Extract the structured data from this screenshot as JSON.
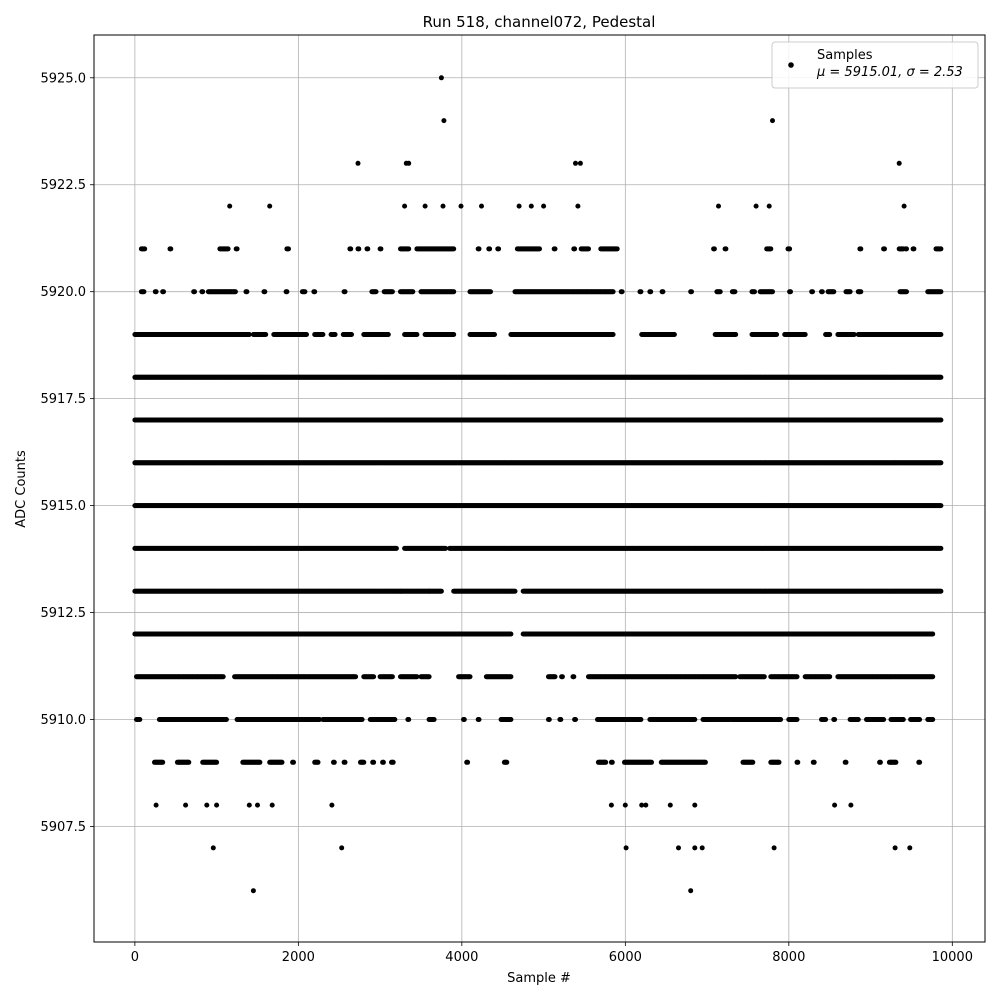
{
  "chart_data": {
    "type": "scatter",
    "title": "Run 518, channel072, Pedestal",
    "xlabel": "Sample #",
    "ylabel": "ADC Counts",
    "xlim": [
      -500,
      10400
    ],
    "ylim": [
      5904.8,
      5926.0
    ],
    "x_ticks": [
      0,
      2000,
      4000,
      6000,
      8000,
      10000
    ],
    "x_tick_labels": [
      "0",
      "2000",
      "4000",
      "6000",
      "8000",
      "10000"
    ],
    "y_ticks": [
      5907.5,
      5910.0,
      5912.5,
      5915.0,
      5917.5,
      5920.0,
      5922.5,
      5925.0
    ],
    "y_tick_labels": [
      "5907.5",
      "5910.0",
      "5912.5",
      "5915.0",
      "5917.5",
      "5920.0",
      "5922.5",
      "5925.0"
    ],
    "grid": true,
    "legend": {
      "placement": "top-right",
      "entries": [
        {
          "name": "Samples",
          "stats": "μ = 5915.01, σ = 2.53"
        }
      ]
    },
    "series": [
      {
        "name": "Samples",
        "color": "#000000",
        "num_samples": 9860,
        "mean": 5915.01,
        "sigma": 2.53,
        "points": [
          [
            3750,
            5925
          ],
          [
            3780,
            5924
          ],
          [
            7800,
            5924
          ],
          [
            2730,
            5923
          ],
          [
            3320,
            5923
          ],
          [
            3350,
            5923
          ],
          [
            5390,
            5923
          ],
          [
            5450,
            5923
          ],
          [
            9350,
            5923
          ],
          [
            1160,
            5922
          ],
          [
            1650,
            5922
          ],
          [
            3300,
            5922
          ],
          [
            3550,
            5922
          ],
          [
            3770,
            5922
          ],
          [
            3990,
            5922
          ],
          [
            4240,
            5922
          ],
          [
            4700,
            5922
          ],
          [
            4850,
            5922
          ],
          [
            5000,
            5922
          ],
          [
            5420,
            5922
          ],
          [
            7140,
            5922
          ],
          [
            7600,
            5922
          ],
          [
            7760,
            5922
          ],
          [
            9410,
            5922
          ],
          [
            960,
            5907
          ],
          [
            2530,
            5907
          ],
          [
            6010,
            5907
          ],
          [
            6650,
            5907
          ],
          [
            6850,
            5907
          ],
          [
            6940,
            5907
          ],
          [
            7820,
            5907
          ],
          [
            9300,
            5907
          ],
          [
            9480,
            5907
          ],
          [
            1450,
            5906
          ],
          [
            6800,
            5906
          ],
          [
            260,
            5908
          ],
          [
            620,
            5908
          ],
          [
            880,
            5908
          ],
          [
            1000,
            5908
          ],
          [
            1400,
            5908
          ],
          [
            1500,
            5908
          ],
          [
            1680,
            5908
          ],
          [
            2410,
            5908
          ],
          [
            5830,
            5908
          ],
          [
            6000,
            5908
          ],
          [
            6200,
            5908
          ],
          [
            6250,
            5908
          ],
          [
            6550,
            5908
          ],
          [
            6850,
            5908
          ],
          [
            8560,
            5908
          ],
          [
            8760,
            5908
          ]
        ],
        "levels": [
          {
            "y": 5909,
            "ranges": [
              [
                240,
                340
              ],
              [
                520,
                660
              ],
              [
                830,
                1000
              ],
              [
                1320,
                1530
              ],
              [
                1650,
                1800
              ],
              [
                1930,
                1940
              ],
              [
                2200,
                2240
              ],
              [
                2430,
                2440
              ],
              [
                2560,
                2570
              ],
              [
                2760,
                2800
              ],
              [
                2910,
                2920
              ],
              [
                3030,
                3040
              ],
              [
                3140,
                3160
              ],
              [
                4060,
                4070
              ],
              [
                4520,
                4550
              ],
              [
                5670,
                5760
              ],
              [
                5830,
                5840
              ],
              [
                5990,
                6320
              ],
              [
                6440,
                6980
              ],
              [
                7440,
                7560
              ],
              [
                7780,
                7880
              ],
              [
                8100,
                8110
              ],
              [
                8300,
                8310
              ],
              [
                8690,
                8700
              ],
              [
                9110,
                9120
              ],
              [
                9230,
                9310
              ],
              [
                9590,
                9600
              ]
            ]
          },
          {
            "y": 5910,
            "ranges": [
              [
                20,
                60
              ],
              [
                300,
                1120
              ],
              [
                1250,
                2260
              ],
              [
                2300,
                2780
              ],
              [
                2880,
                3180
              ],
              [
                3340,
                3350
              ],
              [
                3600,
                3660
              ],
              [
                4020,
                4030
              ],
              [
                4200,
                4210
              ],
              [
                4480,
                4600
              ],
              [
                5060,
                5070
              ],
              [
                5200,
                5210
              ],
              [
                5380,
                5390
              ],
              [
                5660,
                6190
              ],
              [
                6300,
                6850
              ],
              [
                6950,
                7280
              ],
              [
                7300,
                7900
              ],
              [
                8000,
                8100
              ],
              [
                8400,
                8450
              ],
              [
                8550,
                8560
              ],
              [
                8750,
                8850
              ],
              [
                8950,
                9160
              ],
              [
                9250,
                9400
              ],
              [
                9490,
                9600
              ],
              [
                9700,
                9760
              ]
            ]
          },
          {
            "y": 5911,
            "ranges": [
              [
                20,
                1080
              ],
              [
                1220,
                2700
              ],
              [
                2800,
                2920
              ],
              [
                3000,
                3150
              ],
              [
                3250,
                3450
              ],
              [
                3500,
                3600
              ],
              [
                3960,
                4100
              ],
              [
                4300,
                4600
              ],
              [
                5060,
                5140
              ],
              [
                5220,
                5230
              ],
              [
                5360,
                5370
              ],
              [
                5550,
                7350
              ],
              [
                7400,
                7700
              ],
              [
                7780,
                8100
              ],
              [
                8200,
                8500
              ],
              [
                8600,
                9760
              ]
            ]
          },
          {
            "y": 5912,
            "ranges": [
              [
                0,
                1100
              ],
              [
                1100,
                4600
              ],
              [
                4750,
                9760
              ]
            ]
          },
          {
            "y": 5913,
            "ranges": [
              [
                0,
                3250
              ],
              [
                3250,
                3600
              ],
              [
                3600,
                3750
              ],
              [
                3900,
                4650
              ],
              [
                4750,
                9860
              ]
            ]
          },
          {
            "y": 5914,
            "ranges": [
              [
                0,
                3200
              ],
              [
                3300,
                3800
              ],
              [
                3850,
                9860
              ]
            ]
          },
          {
            "y": 5915,
            "ranges": [
              [
                0,
                9860
              ]
            ]
          },
          {
            "y": 5916,
            "ranges": [
              [
                0,
                9860
              ]
            ]
          },
          {
            "y": 5917,
            "ranges": [
              [
                0,
                9860
              ]
            ]
          },
          {
            "y": 5918,
            "ranges": [
              [
                0,
                9860
              ]
            ]
          },
          {
            "y": 5919,
            "ranges": [
              [
                0,
                1100
              ],
              [
                1100,
                1400
              ],
              [
                1450,
                1600
              ],
              [
                1700,
                2100
              ],
              [
                2200,
                2300
              ],
              [
                2400,
                2450
              ],
              [
                2550,
                2650
              ],
              [
                2800,
                3100
              ],
              [
                3300,
                3450
              ],
              [
                3550,
                3900
              ],
              [
                4100,
                4400
              ],
              [
                4600,
                5850
              ],
              [
                6200,
                6600
              ],
              [
                7100,
                7350
              ],
              [
                7550,
                7850
              ],
              [
                7950,
                8200
              ],
              [
                8450,
                8500
              ],
              [
                8600,
                8800
              ],
              [
                8850,
                9800
              ],
              [
                9800,
                9860
              ]
            ]
          },
          {
            "y": 5920,
            "ranges": [
              [
                80,
                110
              ],
              [
                250,
                260
              ],
              [
                340,
                350
              ],
              [
                720,
                730
              ],
              [
                820,
                830
              ],
              [
                900,
                1230
              ],
              [
                1360,
                1370
              ],
              [
                1580,
                1590
              ],
              [
                1850,
                1860
              ],
              [
                2050,
                2080
              ],
              [
                2190,
                2200
              ],
              [
                2560,
                2570
              ],
              [
                2900,
                2950
              ],
              [
                3050,
                3150
              ],
              [
                3250,
                3400
              ],
              [
                3500,
                3900
              ],
              [
                4100,
                4350
              ],
              [
                4650,
                5850
              ],
              [
                5950,
                5960
              ],
              [
                6180,
                6190
              ],
              [
                6300,
                6310
              ],
              [
                6450,
                6460
              ],
              [
                6800,
                6810
              ],
              [
                7120,
                7160
              ],
              [
                7310,
                7340
              ],
              [
                7550,
                7580
              ],
              [
                7650,
                7800
              ],
              [
                8010,
                8020
              ],
              [
                8280,
                8290
              ],
              [
                8400,
                8410
              ],
              [
                8480,
                8550
              ],
              [
                8700,
                8750
              ],
              [
                8850,
                8880
              ],
              [
                9360,
                9440
              ],
              [
                9700,
                9860
              ]
            ]
          },
          {
            "y": 5921,
            "ranges": [
              [
                80,
                120
              ],
              [
                430,
                440
              ],
              [
                1040,
                1140
              ],
              [
                1240,
                1250
              ],
              [
                1860,
                1880
              ],
              [
                2630,
                2640
              ],
              [
                2730,
                2740
              ],
              [
                2840,
                2850
              ],
              [
                3000,
                3010
              ],
              [
                3250,
                3350
              ],
              [
                3450,
                3900
              ],
              [
                4200,
                4210
              ],
              [
                4330,
                4340
              ],
              [
                4440,
                4450
              ],
              [
                4680,
                4950
              ],
              [
                5130,
                5140
              ],
              [
                5370,
                5380
              ],
              [
                5460,
                5550
              ],
              [
                5700,
                5900
              ],
              [
                7080,
                7090
              ],
              [
                7220,
                7230
              ],
              [
                7730,
                7780
              ],
              [
                7990,
                8010
              ],
              [
                8870,
                8880
              ],
              [
                9160,
                9170
              ],
              [
                9350,
                9400
              ],
              [
                9430,
                9440
              ],
              [
                9520,
                9530
              ],
              [
                9800,
                9860
              ]
            ]
          }
        ]
      }
    ]
  }
}
